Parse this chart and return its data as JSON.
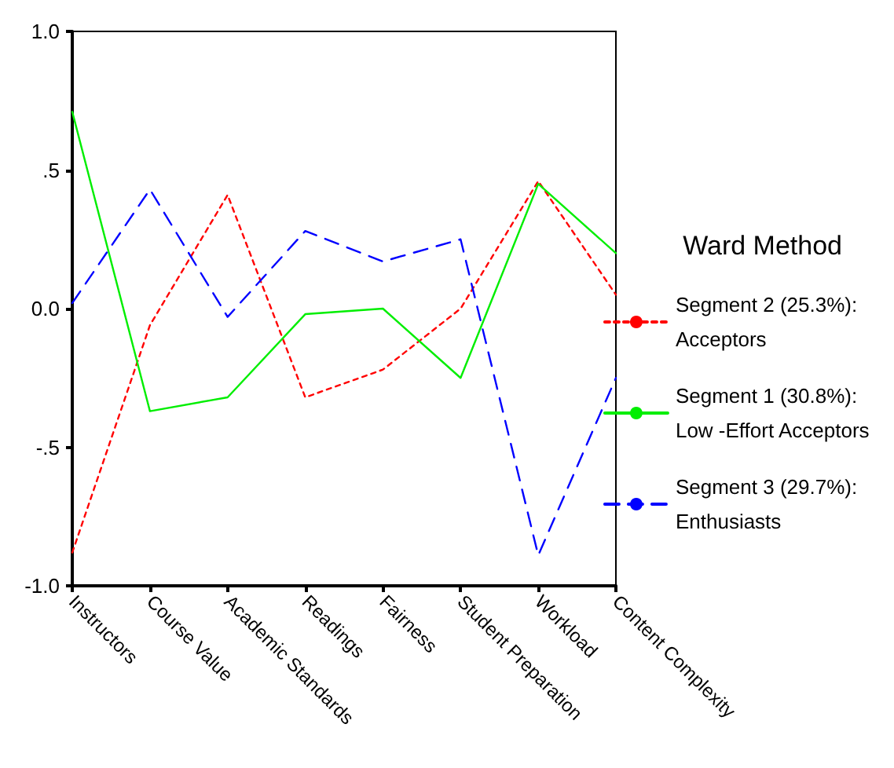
{
  "chart_data": {
    "type": "line",
    "legend_title": "Ward Method",
    "legend": "right",
    "grid": false,
    "marker": "none",
    "categories": [
      "Instructors",
      "Course Value",
      "Academic Standards",
      "Readings",
      "Fairness",
      "Student Preparation",
      "Workload",
      "Content Complexity"
    ],
    "ylim": [
      -1,
      1
    ],
    "yticks": [
      {
        "value": -1,
        "label": "-1.0"
      },
      {
        "value": -0.5,
        "label": "-.5"
      },
      {
        "value": 0,
        "label": "0.0"
      },
      {
        "value": 0.5,
        "label": ".5"
      },
      {
        "value": 1,
        "label": "1.0"
      }
    ],
    "series": [
      {
        "name": "Segment 2 (25.3%):\nAcceptors",
        "color": "#ff0000",
        "line_style": "dotted",
        "values": [
          -0.88,
          -0.06,
          0.41,
          -0.32,
          -0.22,
          0.0,
          0.46,
          0.05
        ]
      },
      {
        "name": "Segment 1 (30.8%):\nLow -Effort Acceptors",
        "color": "#00ee00",
        "line_style": "solid",
        "values": [
          0.71,
          -0.37,
          -0.32,
          -0.02,
          0.0,
          -0.25,
          0.45,
          0.2
        ]
      },
      {
        "name": "Segment 3 (29.7%):\nEnthusiasts",
        "color": "#0000ff",
        "line_style": "dashed",
        "values": [
          0.02,
          0.43,
          -0.03,
          0.28,
          0.17,
          0.25,
          -0.89,
          -0.25
        ]
      }
    ]
  }
}
